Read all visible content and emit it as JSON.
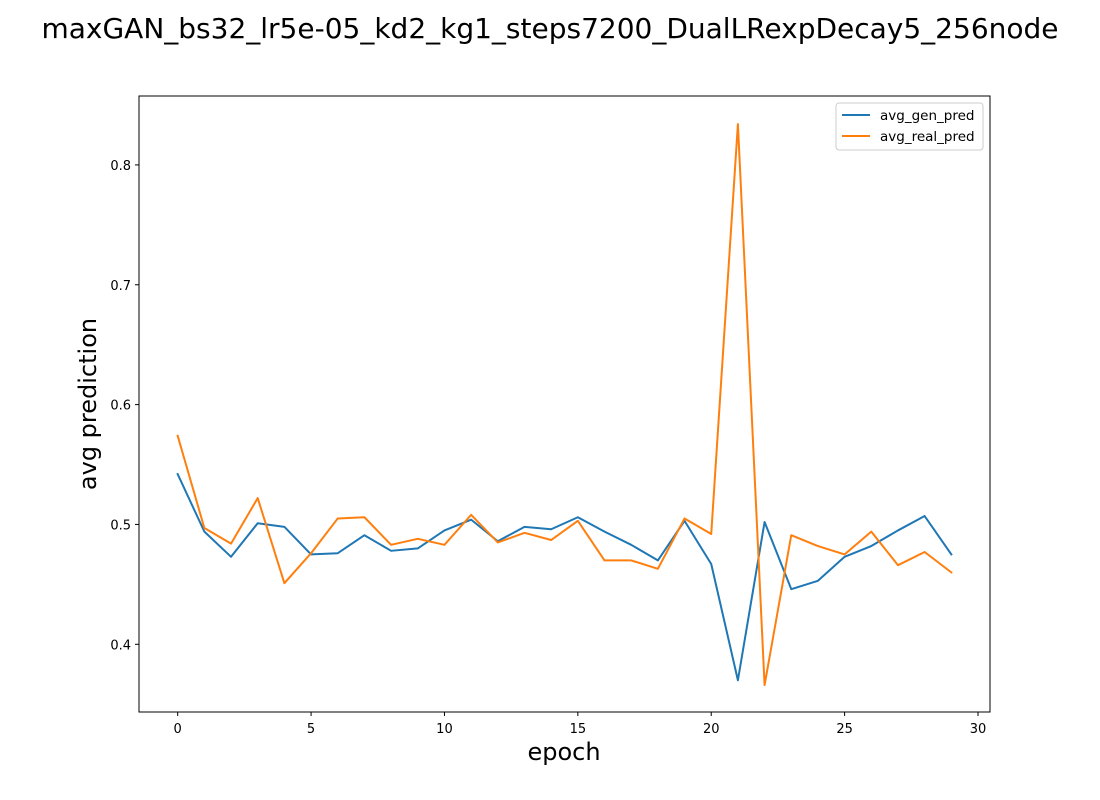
{
  "chart_data": {
    "type": "line",
    "title": "maxGAN_bs32_lr5e-05_kd2_kg1_steps7200_DualLRexpDecay5_256node",
    "xlabel": "epoch",
    "ylabel": "avg prediction",
    "xlim": [
      -1.45,
      30.45
    ],
    "ylim": [
      0.3435,
      0.8575
    ],
    "xticks": [
      0,
      5,
      10,
      15,
      20,
      25,
      30
    ],
    "yticks": [
      0.4,
      0.5,
      0.6,
      0.7,
      0.8
    ],
    "xtick_labels": [
      "0",
      "5",
      "10",
      "15",
      "20",
      "25",
      "30"
    ],
    "ytick_labels": [
      "0.4",
      "0.5",
      "0.6",
      "0.7",
      "0.8"
    ],
    "grid": false,
    "legend_position": "top-right",
    "x": [
      0,
      1,
      2,
      3,
      4,
      5,
      6,
      7,
      8,
      9,
      10,
      11,
      12,
      13,
      14,
      15,
      16,
      17,
      18,
      19,
      20,
      21,
      22,
      23,
      24,
      25,
      26,
      27,
      28,
      29
    ],
    "series": [
      {
        "name": "avg_gen_pred",
        "color": "#1f77b4",
        "values": [
          0.542,
          0.494,
          0.473,
          0.501,
          0.498,
          0.475,
          0.476,
          0.491,
          0.478,
          0.48,
          0.495,
          0.504,
          0.486,
          0.498,
          0.496,
          0.506,
          0.494,
          0.483,
          0.47,
          0.503,
          0.467,
          0.37,
          0.502,
          0.446,
          0.453,
          0.473,
          0.482,
          0.495,
          0.507,
          0.475
        ]
      },
      {
        "name": "avg_real_pred",
        "color": "#ff7f0e",
        "values": [
          0.574,
          0.497,
          0.484,
          0.522,
          0.451,
          0.476,
          0.505,
          0.506,
          0.483,
          0.488,
          0.483,
          0.508,
          0.485,
          0.493,
          0.487,
          0.503,
          0.47,
          0.47,
          0.463,
          0.505,
          0.492,
          0.834,
          0.366,
          0.491,
          0.482,
          0.475,
          0.494,
          0.466,
          0.477,
          0.46
        ]
      }
    ]
  }
}
